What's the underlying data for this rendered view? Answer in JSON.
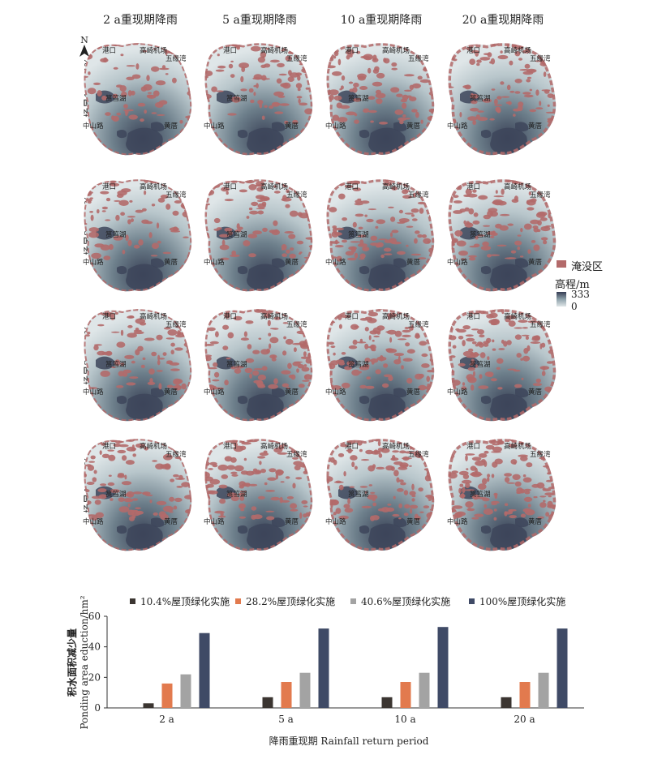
{
  "maps": {
    "columns": [
      "2 a重现期降雨",
      "5 a重现期降雨",
      "10 a重现期降雨",
      "20 a重现期降雨"
    ],
    "rows": [
      "场景1  10.4%",
      "场景2  28.2%",
      "场景3  40.6%",
      "场景4  100%"
    ],
    "places": {
      "gangkou": "港口",
      "airport": "高崎机场",
      "wuyuanwan": "五缘湾",
      "yundang": "筼筜湖",
      "zhongshan": "中山路",
      "huangcuo": "黄厝"
    },
    "north_label": "N",
    "legend": {
      "flood_label": "淹没区",
      "flood_color": "#b36a6a",
      "elev_title": "高程/m",
      "elev_max": "333",
      "elev_min": "0",
      "elev_color_high": "#353c53",
      "elev_color_low": "#dfe6e8"
    }
  },
  "chart_data": {
    "type": "bar",
    "categories": [
      "2 a",
      "5 a",
      "10 a",
      "20 a"
    ],
    "series": [
      {
        "name": "10.4%屋顶绿化实施",
        "color": "#3b3531",
        "values": [
          3,
          7,
          7,
          7
        ]
      },
      {
        "name": "28.2%屋顶绿化实施",
        "color": "#e27a4e",
        "values": [
          16,
          17,
          17,
          17
        ]
      },
      {
        "name": "40.6%屋顶绿化实施",
        "color": "#a3a3a3",
        "values": [
          22,
          23,
          23,
          23
        ]
      },
      {
        "name": "100%屋顶绿化实施",
        "color": "#3f4a66",
        "values": [
          49,
          52,
          53,
          52
        ]
      }
    ],
    "ylim": [
      0,
      60
    ],
    "yticks": [
      0,
      20,
      40,
      60
    ],
    "ylabel_cn": "积水面积减少量",
    "ylabel_en": "Ponding area eduction/hm²",
    "xlabel": "降雨重现期 Rainfall return period",
    "legend_position": "top",
    "grid": false
  }
}
